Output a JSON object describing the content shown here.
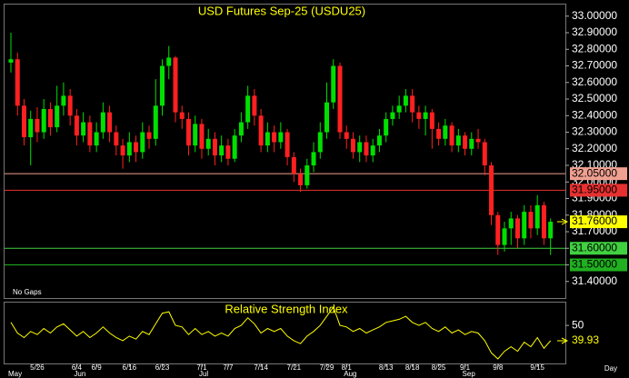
{
  "chart_data": [
    {
      "type": "candlestick",
      "title": "USD Futures Sep-25 (USDU25)",
      "annotation": "No Gaps",
      "up_color": "#00e000",
      "down_color": "#ff2020",
      "open": [
        32.72,
        32.74,
        32.46,
        32.27,
        32.38,
        32.3,
        32.44,
        32.33,
        32.46,
        32.52,
        32.4,
        32.28,
        32.36,
        32.22,
        32.3,
        32.42,
        32.3,
        32.22,
        32.16,
        32.24,
        32.18,
        32.3,
        32.26,
        32.46,
        32.7,
        32.75,
        32.42,
        32.38,
        32.22,
        32.35,
        32.2,
        32.26,
        32.16,
        32.22,
        32.14,
        32.28,
        32.36,
        32.52,
        32.4,
        32.22,
        32.3,
        32.24,
        32.3,
        32.15,
        32.05,
        31.98,
        32.1,
        32.18,
        32.3,
        32.48,
        32.7,
        32.3,
        32.26,
        32.18,
        32.24,
        32.16,
        32.22,
        32.28,
        32.38,
        32.42,
        32.46,
        32.52,
        32.42,
        32.38,
        32.42,
        32.32,
        32.26,
        32.34,
        32.22,
        32.28,
        32.2,
        32.26,
        32.24,
        32.1,
        31.8,
        31.62,
        31.72,
        31.78,
        31.66,
        31.82,
        31.72,
        31.86,
        31.66
      ],
      "high": [
        32.9,
        32.78,
        32.5,
        32.43,
        32.45,
        32.5,
        32.48,
        32.58,
        32.6,
        32.56,
        32.44,
        32.42,
        32.4,
        32.36,
        32.48,
        32.46,
        32.34,
        32.26,
        32.3,
        32.28,
        32.36,
        32.34,
        32.62,
        32.74,
        32.82,
        32.76,
        32.46,
        32.42,
        32.4,
        32.38,
        32.32,
        32.3,
        32.28,
        32.26,
        32.32,
        32.42,
        32.58,
        32.56,
        32.44,
        32.36,
        32.34,
        32.36,
        32.32,
        32.18,
        32.08,
        32.14,
        32.24,
        32.36,
        32.6,
        32.74,
        32.72,
        32.34,
        32.3,
        32.28,
        32.28,
        32.26,
        32.32,
        32.42,
        32.46,
        32.52,
        32.56,
        32.56,
        32.46,
        32.46,
        32.44,
        32.36,
        32.38,
        32.36,
        32.32,
        32.3,
        32.3,
        32.32,
        32.26,
        32.12,
        31.82,
        31.76,
        31.82,
        31.8,
        31.86,
        31.86,
        31.92,
        31.88,
        31.78
      ],
      "low": [
        32.66,
        32.4,
        32.22,
        32.1,
        32.24,
        32.26,
        32.28,
        32.3,
        32.4,
        32.34,
        32.22,
        32.24,
        32.18,
        32.18,
        32.26,
        32.24,
        32.16,
        32.08,
        32.12,
        32.12,
        32.14,
        32.2,
        32.22,
        32.4,
        32.62,
        32.36,
        32.32,
        32.16,
        32.18,
        32.14,
        32.16,
        32.1,
        32.12,
        32.1,
        32.12,
        32.24,
        32.32,
        32.34,
        32.18,
        32.18,
        32.18,
        32.2,
        32.1,
        32.0,
        31.94,
        31.96,
        32.06,
        32.14,
        32.26,
        32.44,
        32.26,
        32.2,
        32.14,
        32.12,
        32.12,
        32.12,
        32.18,
        32.24,
        32.34,
        32.38,
        32.42,
        32.36,
        32.32,
        32.28,
        32.2,
        32.22,
        32.22,
        32.18,
        32.18,
        32.16,
        32.16,
        32.2,
        32.04,
        31.74,
        31.56,
        31.58,
        31.62,
        31.6,
        31.62,
        31.66,
        31.68,
        31.62,
        31.56
      ],
      "close": [
        32.74,
        32.46,
        32.27,
        32.38,
        32.3,
        32.44,
        32.33,
        32.46,
        32.52,
        32.4,
        32.28,
        32.36,
        32.22,
        32.3,
        32.42,
        32.3,
        32.22,
        32.16,
        32.24,
        32.18,
        32.3,
        32.26,
        32.46,
        32.7,
        32.75,
        32.42,
        32.38,
        32.22,
        32.35,
        32.2,
        32.26,
        32.16,
        32.22,
        32.14,
        32.28,
        32.36,
        32.52,
        32.4,
        32.22,
        32.3,
        32.24,
        32.3,
        32.15,
        32.05,
        31.98,
        32.1,
        32.18,
        32.3,
        32.48,
        32.7,
        32.3,
        32.26,
        32.18,
        32.24,
        32.16,
        32.22,
        32.28,
        32.38,
        32.42,
        32.46,
        32.52,
        32.42,
        32.38,
        32.42,
        32.32,
        32.26,
        32.34,
        32.22,
        32.28,
        32.2,
        32.26,
        32.24,
        32.1,
        31.8,
        31.62,
        31.72,
        31.78,
        31.66,
        31.82,
        31.72,
        31.86,
        31.66,
        31.76
      ],
      "ylim": [
        31.3,
        33.07
      ],
      "yticks": [
        {
          "value": 31.4,
          "label": "31.40000"
        },
        {
          "value": 31.5,
          "label": "31.50000"
        },
        {
          "value": 31.6,
          "label": "31.60000"
        },
        {
          "value": 31.7,
          "label": "31.70000"
        },
        {
          "value": 31.8,
          "label": "31.80000"
        },
        {
          "value": 31.9,
          "label": "31.90000"
        },
        {
          "value": 32.0,
          "label": "32.00000"
        },
        {
          "value": 32.1,
          "label": "32.10000"
        },
        {
          "value": 32.2,
          "label": "32.20000"
        },
        {
          "value": 32.3,
          "label": "32.30000"
        },
        {
          "value": 32.4,
          "label": "32.40000"
        },
        {
          "value": 32.5,
          "label": "32.50000"
        },
        {
          "value": 32.6,
          "label": "32.60000"
        },
        {
          "value": 32.7,
          "label": "32.70000"
        },
        {
          "value": 32.8,
          "label": "32.80000"
        },
        {
          "value": 32.9,
          "label": "32.90000"
        },
        {
          "value": 33.0,
          "label": "33.00000"
        }
      ],
      "levels": [
        {
          "value": 32.05,
          "label": "32.05000",
          "color": "#f0a090"
        },
        {
          "value": 31.95,
          "label": "31.95000",
          "color": "#e83030"
        },
        {
          "value": 31.6,
          "label": "31.60000",
          "color": "#40d040"
        },
        {
          "value": 31.5,
          "label": "31.50000",
          "color": "#20b020"
        }
      ],
      "last_price": {
        "value": 31.76,
        "label": "31.76000",
        "color": "#ffff00"
      }
    },
    {
      "type": "line",
      "title": "Relative Strength Index",
      "xlabel": "Day",
      "series": [
        {
          "name": "RSI",
          "color": "#ffff00",
          "values": [
            52,
            45,
            42,
            46,
            44,
            48,
            45,
            49,
            51,
            47,
            43,
            46,
            42,
            45,
            49,
            45,
            42,
            40,
            43,
            41,
            46,
            44,
            51,
            58,
            59,
            50,
            49,
            44,
            48,
            44,
            46,
            43,
            45,
            43,
            48,
            50,
            55,
            51,
            45,
            48,
            46,
            48,
            43,
            40,
            38,
            43,
            46,
            50,
            56,
            62,
            50,
            49,
            46,
            48,
            45,
            47,
            49,
            52,
            53,
            54,
            56,
            52,
            50,
            52,
            48,
            46,
            49,
            45,
            47,
            44,
            46,
            45,
            40,
            32,
            28,
            33,
            36,
            33,
            39,
            36,
            42,
            35,
            39.93
          ]
        }
      ],
      "ylim": [
        25,
        65
      ],
      "yticks": [
        50
      ],
      "categories": [
        null,
        null,
        null,
        null,
        "5/26",
        null,
        null,
        null,
        null,
        null,
        "6/4",
        null,
        null,
        "6/9",
        null,
        null,
        null,
        null,
        "6/16",
        null,
        null,
        null,
        null,
        "6/23",
        null,
        null,
        null,
        null,
        null,
        "7/1",
        null,
        null,
        null,
        "7/7",
        null,
        null,
        null,
        null,
        "7/14",
        null,
        null,
        null,
        null,
        "7/21",
        null,
        null,
        null,
        null,
        "7/29",
        null,
        null,
        "8/1",
        null,
        null,
        null,
        null,
        null,
        "8/13",
        null,
        null,
        null,
        "8/18",
        null,
        null,
        null,
        "8/25",
        null,
        null,
        null,
        "9/1",
        null,
        null,
        null,
        null,
        "9/8",
        null,
        null,
        null,
        null,
        null,
        "9/15",
        null,
        null
      ],
      "months": [
        "May",
        null,
        null,
        null,
        null,
        null,
        null,
        null,
        null,
        null,
        "Jun",
        null,
        null,
        null,
        null,
        null,
        null,
        null,
        null,
        null,
        null,
        null,
        null,
        null,
        null,
        null,
        null,
        null,
        null,
        "Jul",
        null,
        null,
        null,
        null,
        null,
        null,
        null,
        null,
        null,
        null,
        null,
        null,
        null,
        null,
        null,
        null,
        null,
        null,
        null,
        null,
        null,
        "Aug",
        null,
        null,
        null,
        null,
        null,
        null,
        null,
        null,
        null,
        null,
        null,
        null,
        null,
        null,
        null,
        null,
        null,
        "Sep",
        null,
        null,
        null,
        null,
        null,
        null,
        null,
        null,
        null,
        null,
        null,
        null,
        null
      ]
    }
  ]
}
